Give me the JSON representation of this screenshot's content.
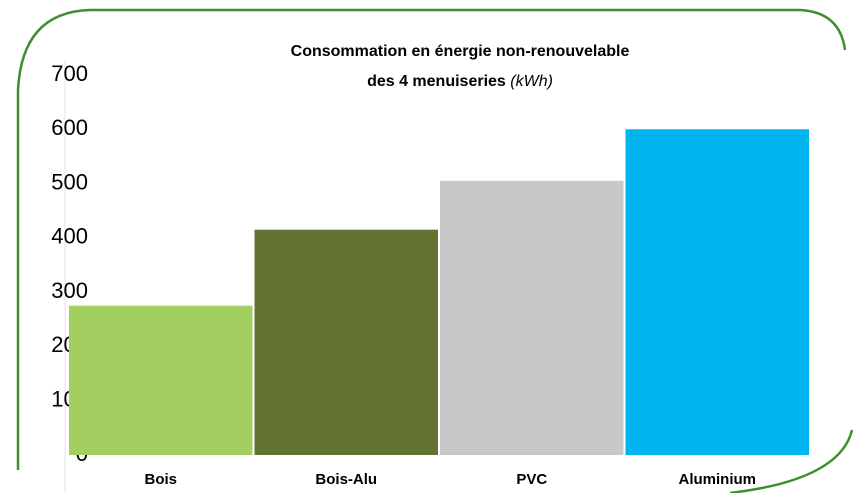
{
  "chart_data": {
    "type": "bar",
    "title_lines": [
      "Consommation en énergie non-renouvelable",
      "des 4 menuiseries"
    ],
    "title_unit": "(kWh)",
    "categories": [
      "Bois",
      "Bois-Alu",
      "PVC",
      "Aluminium"
    ],
    "values": [
      275,
      415,
      505,
      600
    ],
    "colors": [
      "#a2cf5f",
      "#627334",
      "#c8c8c8",
      "#00b5ef"
    ],
    "ylim": [
      0,
      700
    ],
    "yticks": [
      0,
      100,
      200,
      300,
      400,
      500,
      600,
      700
    ],
    "grid": false
  }
}
